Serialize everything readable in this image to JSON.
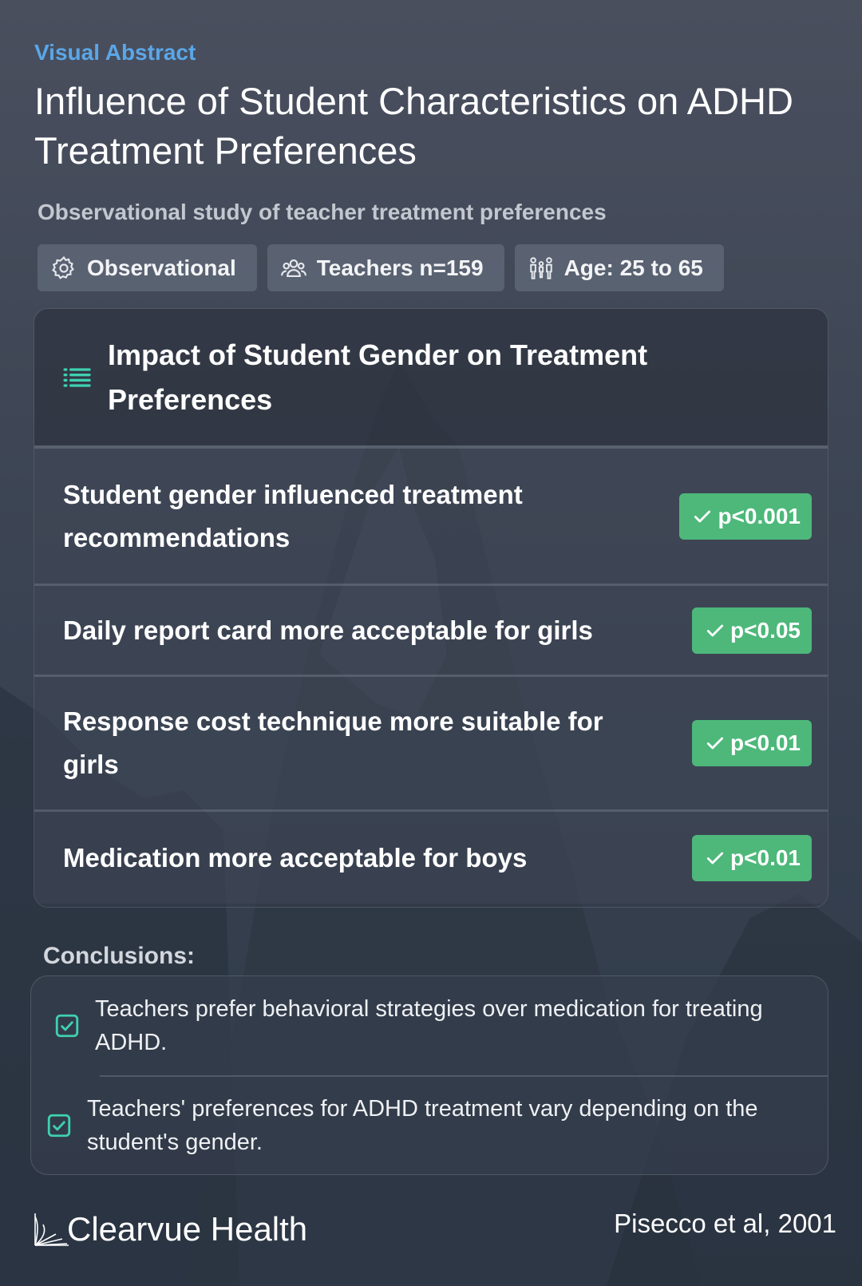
{
  "header": {
    "eyebrow": "Visual Abstract",
    "title": "Influence of Student Characteristics on ADHD Treatment Preferences",
    "subtitle": "Observational study of teacher treatment preferences"
  },
  "tags": [
    {
      "icon": "gear-icon",
      "label": "Observational"
    },
    {
      "icon": "people-icon",
      "label": "Teachers n=159"
    },
    {
      "icon": "family-icon",
      "label": "Age: 25 to 65"
    }
  ],
  "findings": {
    "icon": "list-icon",
    "title": "Impact of Student Gender on Treatment Preferences",
    "rows": [
      {
        "text": "Student gender influenced treatment recommendations",
        "badge": "p<0.001"
      },
      {
        "text": "Daily report card more acceptable for girls",
        "badge": "p<0.05"
      },
      {
        "text": "Response cost technique more suitable for girls",
        "badge": "p<0.01"
      },
      {
        "text": "Medication more acceptable for boys",
        "badge": "p<0.01"
      }
    ]
  },
  "conclusions": {
    "label": "Conclusions:",
    "items": [
      {
        "icon": "checkbox-icon",
        "text": "Teachers prefer behavioral strategies over medication for treating ADHD."
      },
      {
        "icon": "checkbox-icon",
        "text": "Teachers' preferences for ADHD treatment vary depending on the student's gender."
      }
    ]
  },
  "footer": {
    "brand": "Clearvue Health",
    "citation": "Pisecco et al, 2001"
  },
  "colors": {
    "accent_blue": "#5aa7e8",
    "badge_green": "#4db87a",
    "icon_teal": "#3fd0b0"
  }
}
